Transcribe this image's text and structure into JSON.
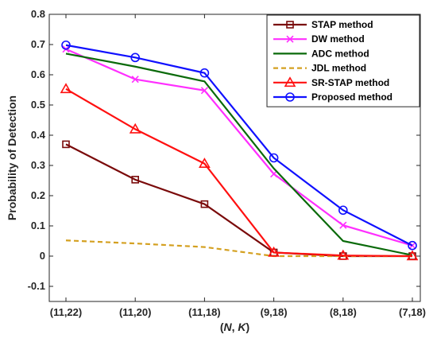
{
  "chart_data": {
    "type": "line",
    "categories": [
      "(11,22)",
      "(11,20)",
      "(11,18)",
      "(9,18)",
      "(8,18)",
      "(7,18)"
    ],
    "xlabel_parts": [
      "(",
      "N",
      ", ",
      "K",
      ")"
    ],
    "ylabel": "Probability of Detection",
    "ylim": [
      -0.15,
      0.8
    ],
    "yticks": [
      -0.1,
      0,
      0.1,
      0.2,
      0.3,
      0.4,
      0.5,
      0.6,
      0.7,
      0.8
    ],
    "ytick_labels": [
      "-0.1",
      "0",
      "0.1",
      "0.2",
      "0.3",
      "0.4",
      "0.5",
      "0.6",
      "0.7",
      "0.8"
    ],
    "grid": false,
    "legend_position": "top-right",
    "series": [
      {
        "name": "STAP method",
        "color": "#7a0a0a",
        "marker": "square",
        "dash": "solid",
        "values": [
          0.37,
          0.253,
          0.172,
          0.012,
          0.0,
          0.0
        ]
      },
      {
        "name": "DW method",
        "color": "#ff2fff",
        "marker": "x",
        "dash": "solid",
        "values": [
          0.685,
          0.585,
          0.548,
          0.272,
          0.102,
          0.035
        ]
      },
      {
        "name": "ADC method",
        "color": "#0a6a0a",
        "marker": "none",
        "dash": "solid",
        "values": [
          0.67,
          0.627,
          0.578,
          0.29,
          0.05,
          0.003
        ]
      },
      {
        "name": "JDL method",
        "color": "#d4a020",
        "marker": "none",
        "dash": "dashed",
        "values": [
          0.052,
          0.042,
          0.03,
          0.0,
          0.0,
          0.0
        ]
      },
      {
        "name": "SR-STAP method",
        "color": "#ff1010",
        "marker": "triangle",
        "dash": "solid",
        "values": [
          0.553,
          0.42,
          0.306,
          0.012,
          0.002,
          0.0
        ]
      },
      {
        "name": "Proposed method",
        "color": "#1010ff",
        "marker": "circle",
        "dash": "solid",
        "values": [
          0.698,
          0.657,
          0.606,
          0.325,
          0.152,
          0.035
        ]
      }
    ]
  }
}
